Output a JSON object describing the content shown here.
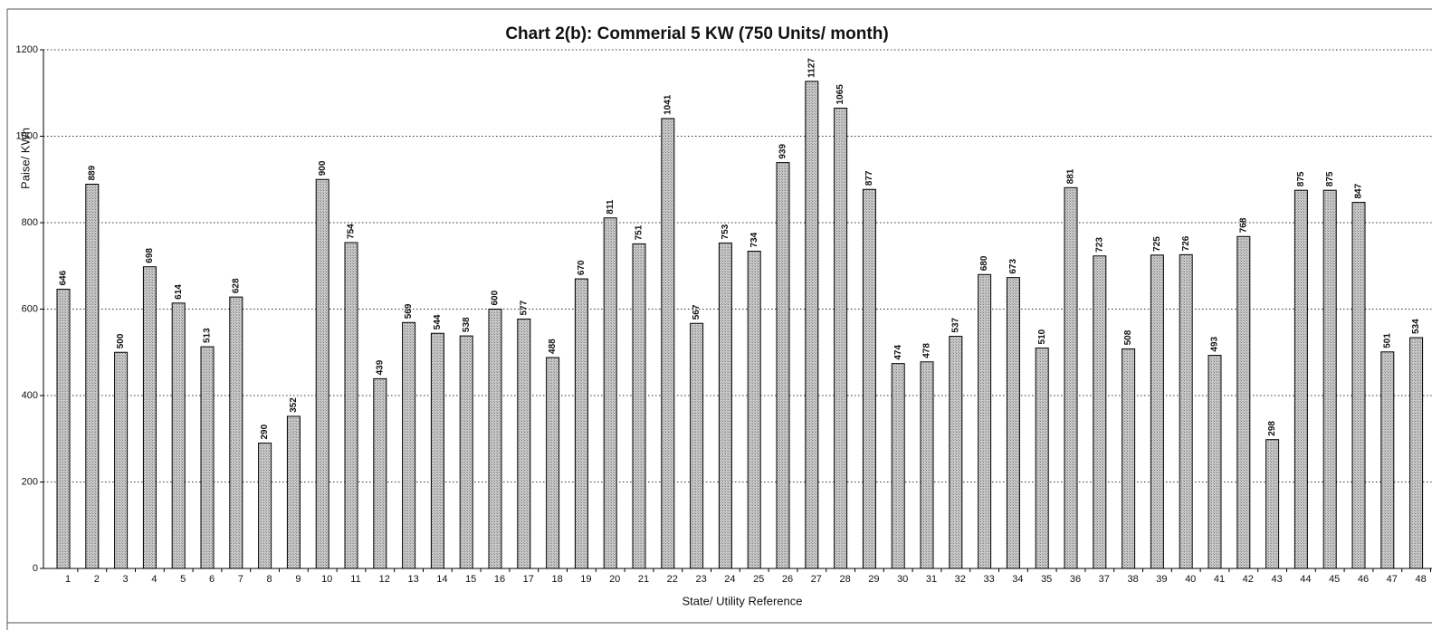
{
  "chart_data": {
    "type": "bar",
    "title": "Chart 2(b): Commerial 5 KW (750 Units/ month)",
    "x_label": "State/ Utility Reference",
    "y_label": "Paise/ KWh",
    "categories": [
      "1",
      "2",
      "3",
      "4",
      "5",
      "6",
      "7",
      "8",
      "9",
      "10",
      "11",
      "12",
      "13",
      "14",
      "15",
      "16",
      "17",
      "18",
      "19",
      "20",
      "21",
      "22",
      "23",
      "24",
      "25",
      "26",
      "27",
      "28",
      "29",
      "30",
      "31",
      "32",
      "33",
      "34",
      "35",
      "36",
      "37",
      "38",
      "39",
      "40",
      "41",
      "42",
      "43",
      "44",
      "45",
      "46",
      "47",
      "48"
    ],
    "values": [
      646,
      889,
      500,
      698,
      614,
      513,
      628,
      290,
      352,
      900,
      754,
      439,
      569,
      544,
      538,
      600,
      577,
      488,
      670,
      811,
      751,
      1041,
      567,
      753,
      734,
      939,
      1127,
      1065,
      877,
      474,
      478,
      537,
      680,
      673,
      510,
      881,
      723,
      508,
      725,
      726,
      493,
      768,
      298,
      875,
      875,
      847,
      501,
      534
    ],
    "color": "#b4b4b4",
    "ylim": [
      0,
      1200
    ],
    "yticks": [
      0,
      200,
      400,
      600,
      800,
      1000,
      1200
    ],
    "grid": true
  }
}
